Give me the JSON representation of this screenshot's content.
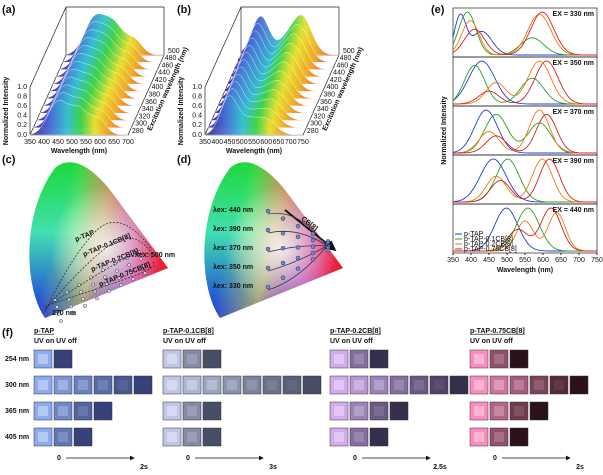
{
  "panels": {
    "a": {
      "label": "(a)",
      "y_label": "Normalized Intensity",
      "x_label": "Wavelength (nm)",
      "z_label": "Excitation wavelength (nm)",
      "xticks": [
        350,
        400,
        450,
        500,
        550,
        600,
        650,
        700
      ],
      "yticks": [
        "0.0",
        "0.2",
        "0.4",
        "0.6",
        "0.8",
        "1.0"
      ],
      "zticks": [
        280,
        300,
        320,
        340,
        360,
        380,
        400,
        420,
        440,
        460,
        480,
        500
      ]
    },
    "b": {
      "label": "(b)",
      "y_label": "Normalized Intensity",
      "x_label": "Wavelength (nm)",
      "z_label": "Excitation wavelength (nm)",
      "xticks": [
        350,
        400,
        450,
        500,
        550,
        600,
        650,
        700,
        750
      ],
      "yticks": [
        "0.0",
        "0.2",
        "0.4",
        "0.6",
        "0.8",
        "1.0"
      ],
      "zticks": [
        280,
        300,
        320,
        340,
        360,
        380,
        400,
        420,
        440,
        460,
        480,
        500
      ]
    },
    "c": {
      "label": "(c)",
      "series": [
        "p-TAP",
        "p-TAP-0.1CB[8]",
        "p-TAP-0.2CB[8]",
        "p-TAP-0.75CB[8]"
      ],
      "end_label": "λex: 500 nm",
      "start_label": "270 nm"
    },
    "d": {
      "label": "(d)",
      "arrow_label": "CB[8]",
      "lines": [
        "λex: 440 nm",
        "λex: 390 nm",
        "λex: 370 nm",
        "λex: 350 nm",
        "λex: 330 nm"
      ]
    },
    "e": {
      "label": "(e)",
      "y_label": "Normalized Intensity",
      "x_label": "Wavelength (nm)",
      "xticks": [
        350,
        400,
        450,
        500,
        550,
        600,
        650,
        700,
        750
      ],
      "subpanels": [
        "EX = 330 nm",
        "EX = 350 nm",
        "EX = 370 nm",
        "EX = 390 nm",
        "EX = 440 nm"
      ],
      "legend": [
        "p-TAP",
        "p-TAP-0.1CB[8]",
        "p-TAP-0.2CB[8]",
        "p-TAP-0.75CB[8]"
      ]
    },
    "f": {
      "label": "(f)",
      "rows": [
        "254 nm",
        "300 nm",
        "365 nm",
        "405 nm"
      ],
      "groups": [
        {
          "name": "p-TAP",
          "uv": "UV on UV off",
          "start": "0",
          "end": "2s"
        },
        {
          "name": "p-TAP-0.1CB[8]",
          "uv": "UV on UV off",
          "start": "0",
          "end": "3s"
        },
        {
          "name": "p-TAP-0.2CB[8]",
          "uv": "UV on UV off",
          "start": "0",
          "end": "2.5s"
        },
        {
          "name": "p-TAP-0.75CB[8]",
          "uv": "UV on UV off",
          "start": "0",
          "end": "2s"
        }
      ]
    }
  }
}
